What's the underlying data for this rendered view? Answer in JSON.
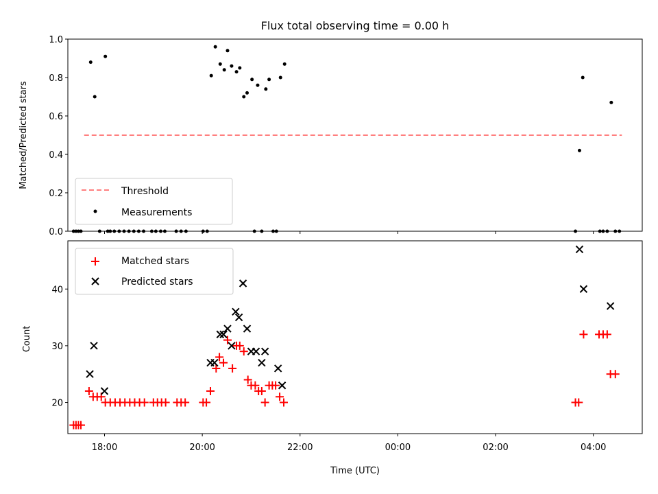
{
  "chart_data": [
    {
      "type": "scatter",
      "title": "Flux total observing time = 0.00 h",
      "ylabel": "Matched/Predicted stars",
      "xlim": [
        "17:15",
        "05:00"
      ],
      "ylim": [
        0.0,
        1.0
      ],
      "x_ticks": [
        "18:00",
        "20:00",
        "22:00",
        "00:00",
        "02:00",
        "04:00"
      ],
      "y_ticks": [
        "0.0",
        "0.2",
        "0.4",
        "0.6",
        "0.8",
        "1.0"
      ],
      "legend_position": "lower-left",
      "grid": false,
      "series": [
        {
          "name": "Threshold",
          "style": "dashed-line",
          "color": "#ff7f7f",
          "x": [
            "17:35",
            "04:35"
          ],
          "y": [
            0.5,
            0.5
          ]
        },
        {
          "name": "Measurements",
          "style": "dot",
          "color": "#000000",
          "points": [
            [
              "17:22",
              0.0
            ],
            [
              "17:25",
              0.0
            ],
            [
              "17:28",
              0.0
            ],
            [
              "17:31",
              0.0
            ],
            [
              "17:43",
              0.88
            ],
            [
              "17:48",
              0.7
            ],
            [
              "17:54",
              0.0
            ],
            [
              "18:01",
              0.91
            ],
            [
              "18:04",
              0.0
            ],
            [
              "18:07",
              0.0
            ],
            [
              "18:12",
              0.0
            ],
            [
              "18:18",
              0.0
            ],
            [
              "18:24",
              0.0
            ],
            [
              "18:30",
              0.0
            ],
            [
              "18:36",
              0.0
            ],
            [
              "18:42",
              0.0
            ],
            [
              "18:48",
              0.0
            ],
            [
              "18:58",
              0.0
            ],
            [
              "19:03",
              0.0
            ],
            [
              "19:09",
              0.0
            ],
            [
              "19:14",
              0.0
            ],
            [
              "19:28",
              0.0
            ],
            [
              "19:34",
              0.0
            ],
            [
              "19:40",
              0.0
            ],
            [
              "20:01",
              0.0
            ],
            [
              "20:06",
              0.0
            ],
            [
              "20:11",
              0.81
            ],
            [
              "20:16",
              0.96
            ],
            [
              "20:22",
              0.87
            ],
            [
              "20:27",
              0.84
            ],
            [
              "20:31",
              0.94
            ],
            [
              "20:36",
              0.86
            ],
            [
              "20:42",
              0.83
            ],
            [
              "20:46",
              0.85
            ],
            [
              "20:51",
              0.7
            ],
            [
              "20:55",
              0.72
            ],
            [
              "21:01",
              0.79
            ],
            [
              "21:04",
              0.0
            ],
            [
              "21:08",
              0.76
            ],
            [
              "21:13",
              0.0
            ],
            [
              "21:18",
              0.74
            ],
            [
              "21:22",
              0.79
            ],
            [
              "21:27",
              0.0
            ],
            [
              "21:31",
              0.0
            ],
            [
              "21:36",
              0.8
            ],
            [
              "21:41",
              0.87
            ],
            [
              "03:38",
              0.0
            ],
            [
              "03:43",
              0.42
            ],
            [
              "03:47",
              0.8
            ],
            [
              "04:08",
              0.0
            ],
            [
              "04:12",
              0.0
            ],
            [
              "04:17",
              0.0
            ],
            [
              "04:22",
              0.67
            ],
            [
              "04:27",
              0.0
            ],
            [
              "04:32",
              0.0
            ]
          ]
        }
      ]
    },
    {
      "type": "scatter",
      "xlabel": "Time (UTC)",
      "ylabel": "Count",
      "xlim": [
        "17:15",
        "05:00"
      ],
      "ylim": [
        14.5,
        48.5
      ],
      "x_ticks": [
        "18:00",
        "20:00",
        "22:00",
        "00:00",
        "02:00",
        "04:00"
      ],
      "y_ticks": [
        "20",
        "30",
        "40"
      ],
      "legend_position": "upper-left",
      "grid": false,
      "series": [
        {
          "name": "Matched stars",
          "marker": "plus",
          "color": "#ff0000",
          "points": [
            [
              "17:22",
              16
            ],
            [
              "17:25",
              16
            ],
            [
              "17:28",
              16
            ],
            [
              "17:31",
              16
            ],
            [
              "17:41",
              22
            ],
            [
              "17:46",
              21
            ],
            [
              "17:51",
              21
            ],
            [
              "17:56",
              21
            ],
            [
              "18:01",
              20
            ],
            [
              "18:07",
              20
            ],
            [
              "18:13",
              20
            ],
            [
              "18:19",
              20
            ],
            [
              "18:25",
              20
            ],
            [
              "18:31",
              20
            ],
            [
              "18:37",
              20
            ],
            [
              "18:43",
              20
            ],
            [
              "18:49",
              20
            ],
            [
              "19:00",
              20
            ],
            [
              "19:05",
              20
            ],
            [
              "19:10",
              20
            ],
            [
              "19:15",
              20
            ],
            [
              "19:29",
              20
            ],
            [
              "19:34",
              20
            ],
            [
              "19:39",
              20
            ],
            [
              "20:01",
              20
            ],
            [
              "20:05",
              20
            ],
            [
              "20:10",
              22
            ],
            [
              "20:17",
              26
            ],
            [
              "20:21",
              28
            ],
            [
              "20:26",
              27
            ],
            [
              "20:31",
              31
            ],
            [
              "20:37",
              26
            ],
            [
              "20:42",
              30
            ],
            [
              "20:46",
              30
            ],
            [
              "20:51",
              29
            ],
            [
              "20:56",
              24
            ],
            [
              "21:00",
              23
            ],
            [
              "21:05",
              23
            ],
            [
              "21:09",
              22
            ],
            [
              "21:13",
              22
            ],
            [
              "21:17",
              20
            ],
            [
              "21:22",
              23
            ],
            [
              "21:26",
              23
            ],
            [
              "21:30",
              23
            ],
            [
              "21:35",
              21
            ],
            [
              "21:40",
              20
            ],
            [
              "03:38",
              20
            ],
            [
              "03:42",
              20
            ],
            [
              "03:48",
              32
            ],
            [
              "04:07",
              32
            ],
            [
              "04:12",
              32
            ],
            [
              "04:17",
              32
            ],
            [
              "04:21",
              25
            ],
            [
              "04:27",
              25
            ]
          ]
        },
        {
          "name": "Predicted stars",
          "marker": "x",
          "color": "#000000",
          "points": [
            [
              "17:42",
              25
            ],
            [
              "17:47",
              30
            ],
            [
              "18:00",
              22
            ],
            [
              "20:10",
              27
            ],
            [
              "20:15",
              27
            ],
            [
              "20:22",
              32
            ],
            [
              "20:26",
              32
            ],
            [
              "20:31",
              33
            ],
            [
              "20:36",
              30
            ],
            [
              "20:41",
              36
            ],
            [
              "20:45",
              35
            ],
            [
              "20:50",
              41
            ],
            [
              "20:55",
              33
            ],
            [
              "21:00",
              29
            ],
            [
              "21:06",
              29
            ],
            [
              "21:13",
              27
            ],
            [
              "21:17",
              29
            ],
            [
              "21:33",
              26
            ],
            [
              "21:38",
              23
            ],
            [
              "03:43",
              47
            ],
            [
              "03:48",
              40
            ],
            [
              "04:21",
              37
            ]
          ]
        }
      ]
    }
  ]
}
